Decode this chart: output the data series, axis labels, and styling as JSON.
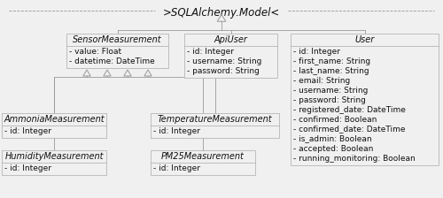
{
  "bg_color": "#f0f0f0",
  "title": ">SQLAlchemy.Model<",
  "title_fontsize": 8.5,
  "title_style": "italic",
  "line_color": "#999999",
  "text_color": "#111111",
  "box_facecolor": "#f0f0f0",
  "box_edgecolor": "#aaaaaa",
  "classes": [
    {
      "name": "SensorMeasurement",
      "col": 1,
      "row": 0,
      "attrs": [
        "- value: Float",
        "- datetime: DateTime"
      ]
    },
    {
      "name": "ApiUser",
      "col": 2,
      "row": 0,
      "attrs": [
        "- id: Integer",
        "- username: String",
        "- password: String"
      ]
    },
    {
      "name": "User",
      "col": 3,
      "row": 0,
      "attrs": [
        "- id: Integer",
        "- first_name: String",
        "- last_name: String",
        "- email: String",
        "- username: String",
        "- password: String",
        "- registered_date: DateTime",
        "- confirmed: Boolean",
        "- confirmed_date: DateTime",
        "- is_admin: Boolean",
        "- accepted: Boolean",
        "- running_monitoring: Boolean"
      ]
    },
    {
      "name": "AmmoniaMeasurement",
      "col": 0,
      "row": 1,
      "attrs": [
        "- id: Integer"
      ]
    },
    {
      "name": "TemperatureMeasurement",
      "col": 1,
      "row": 1,
      "attrs": [
        "- id: Integer"
      ]
    },
    {
      "name": "HumidityMeasurement",
      "col": 0,
      "row": 2,
      "attrs": [
        "- id: Integer"
      ]
    },
    {
      "name": "PM25Measurement",
      "col": 1,
      "row": 2,
      "attrs": [
        "- id: Integer"
      ]
    }
  ]
}
